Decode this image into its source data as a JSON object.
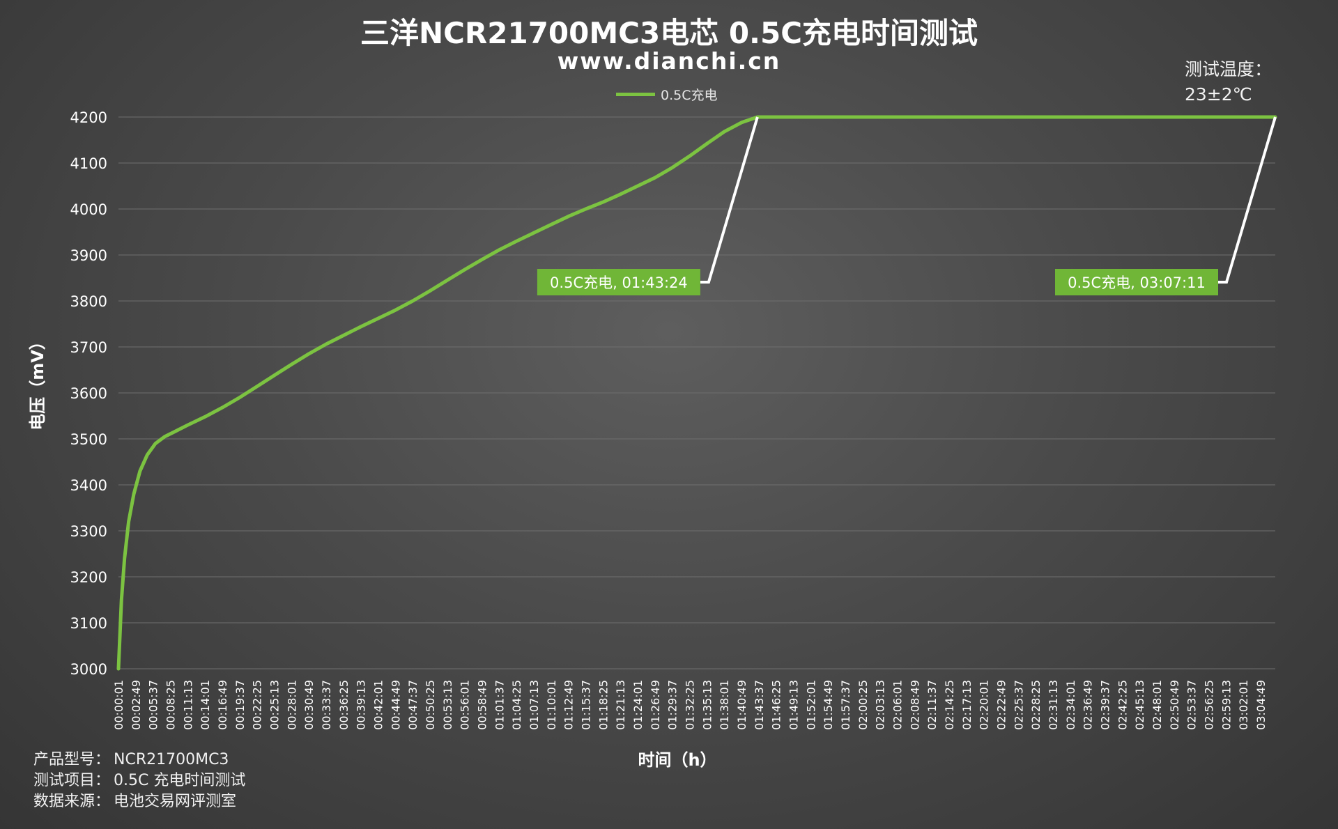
{
  "chart_data": {
    "type": "line",
    "title": "三洋NCR21700MC3电芯 0.5C充电时间测试",
    "subtitle": "www.dianchi.cn",
    "xlabel": "时间（h）",
    "ylabel": "电压（mV）",
    "ylim": [
      3000,
      4200
    ],
    "yticks": [
      3000,
      3100,
      3200,
      3300,
      3400,
      3500,
      3600,
      3700,
      3800,
      3900,
      4000,
      4100,
      4200
    ],
    "grid": true,
    "legend_position": "top-center",
    "series_color": "#7cc341",
    "xticks": [
      "00:00:01",
      "00:02:49",
      "00:05:37",
      "00:08:25",
      "00:11:13",
      "00:14:01",
      "00:16:49",
      "00:19:37",
      "00:22:25",
      "00:25:13",
      "00:28:01",
      "00:30:49",
      "00:33:37",
      "00:36:25",
      "00:39:13",
      "00:42:01",
      "00:44:49",
      "00:47:37",
      "00:50:25",
      "00:53:13",
      "00:56:01",
      "00:58:49",
      "01:01:37",
      "01:04:25",
      "01:07:13",
      "01:10:01",
      "01:12:49",
      "01:15:37",
      "01:18:25",
      "01:21:13",
      "01:24:01",
      "01:26:49",
      "01:29:37",
      "01:32:25",
      "01:35:13",
      "01:38:01",
      "01:40:49",
      "01:43:37",
      "01:46:25",
      "01:49:13",
      "01:52:01",
      "01:54:49",
      "01:57:37",
      "02:00:25",
      "02:03:13",
      "02:06:01",
      "02:08:49",
      "02:11:37",
      "02:14:25",
      "02:17:13",
      "02:20:01",
      "02:22:49",
      "02:25:37",
      "02:28:25",
      "02:31:13",
      "02:34:01",
      "02:36:49",
      "02:39:37",
      "02:42:25",
      "02:45:13",
      "02:48:01",
      "02:50:49",
      "02:53:37",
      "02:56:25",
      "02:59:13",
      "03:02:01",
      "03:04:49"
    ],
    "series": [
      {
        "name": "0.5C充电",
        "points": [
          [
            "00:00:01",
            3000
          ],
          [
            "00:00:30",
            3150
          ],
          [
            "00:01:00",
            3240
          ],
          [
            "00:01:40",
            3320
          ],
          [
            "00:02:30",
            3380
          ],
          [
            "00:03:30",
            3430
          ],
          [
            "00:04:40",
            3465
          ],
          [
            "00:06:00",
            3490
          ],
          [
            "00:07:30",
            3505
          ],
          [
            "00:09:00",
            3515
          ],
          [
            "00:11:13",
            3530
          ],
          [
            "00:14:01",
            3548
          ],
          [
            "00:16:49",
            3568
          ],
          [
            "00:19:37",
            3590
          ],
          [
            "00:22:25",
            3614
          ],
          [
            "00:25:13",
            3638
          ],
          [
            "00:28:01",
            3662
          ],
          [
            "00:30:49",
            3685
          ],
          [
            "00:33:37",
            3706
          ],
          [
            "00:36:25",
            3725
          ],
          [
            "00:39:13",
            3744
          ],
          [
            "00:42:01",
            3762
          ],
          [
            "00:44:49",
            3780
          ],
          [
            "00:47:37",
            3800
          ],
          [
            "00:50:25",
            3822
          ],
          [
            "00:53:13",
            3845
          ],
          [
            "00:56:01",
            3868
          ],
          [
            "00:58:49",
            3890
          ],
          [
            "01:01:37",
            3911
          ],
          [
            "01:04:25",
            3930
          ],
          [
            "01:07:13",
            3948
          ],
          [
            "01:10:01",
            3966
          ],
          [
            "01:12:49",
            3984
          ],
          [
            "01:15:37",
            4000
          ],
          [
            "01:18:25",
            4015
          ],
          [
            "01:21:13",
            4032
          ],
          [
            "01:24:01",
            4050
          ],
          [
            "01:26:49",
            4068
          ],
          [
            "01:29:37",
            4090
          ],
          [
            "01:32:25",
            4115
          ],
          [
            "01:35:13",
            4142
          ],
          [
            "01:38:01",
            4168
          ],
          [
            "01:40:49",
            4188
          ],
          [
            "01:43:24",
            4200
          ],
          [
            "02:00:25",
            4200
          ],
          [
            "02:28:25",
            4200
          ],
          [
            "02:56:25",
            4200
          ],
          [
            "03:07:11",
            4200
          ]
        ]
      }
    ],
    "annotations": [
      {
        "x": "01:43:24",
        "y": 4200,
        "label": "0.5C充电, 01:43:24"
      },
      {
        "x": "03:07:11",
        "y": 4200,
        "label": "0.5C充电, 03:07:11"
      }
    ]
  },
  "temperature_note": {
    "line1": "测试温度：",
    "line2": "23±2℃"
  },
  "footer": [
    {
      "label": "产品型号：",
      "value": "NCR21700MC3"
    },
    {
      "label": "测试项目：",
      "value": "0.5C 充电时间测试"
    },
    {
      "label": "数据来源：",
      "value": "电池交易网评测室"
    }
  ]
}
